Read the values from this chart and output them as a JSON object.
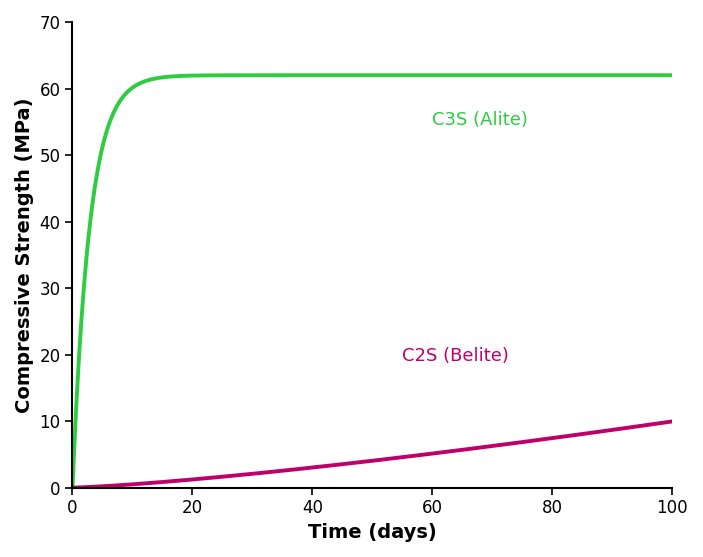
{
  "title": "",
  "xlabel": "Time (days)",
  "ylabel": "Compressive Strength (MPa)",
  "xlim": [
    0,
    100
  ],
  "ylim": [
    0,
    70
  ],
  "xticks": [
    0,
    20,
    40,
    60,
    80,
    100
  ],
  "yticks": [
    0,
    10,
    20,
    30,
    40,
    50,
    60,
    70
  ],
  "c3s_color": "#2ecc40",
  "c2s_color": "#c0006a",
  "c3s_label": "C3S (Alite)",
  "c2s_label": "C2S (Belite)",
  "c3s_asymptote": 62.0,
  "c3s_rate": 0.35,
  "c2s_rate": 0.025,
  "c2s_power": 1.3,
  "line_width": 2.8,
  "label_fontsize": 14,
  "tick_fontsize": 12,
  "annotation_fontsize": 13,
  "background_color": "#ffffff",
  "axes_color": "#000000"
}
